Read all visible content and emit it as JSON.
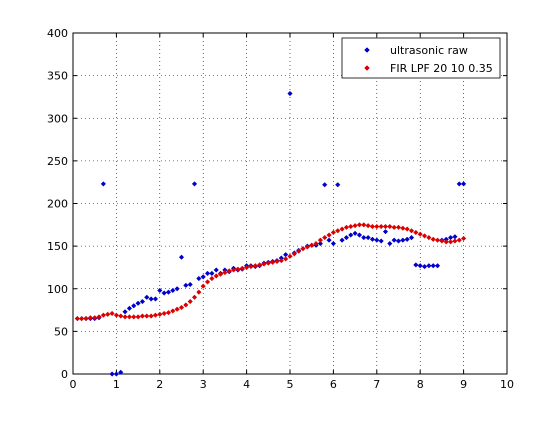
{
  "chart_data": {
    "type": "scatter",
    "title": "",
    "xlabel": "",
    "ylabel": "",
    "xlim": [
      0,
      10
    ],
    "ylim": [
      0,
      400
    ],
    "x_ticks": [
      0,
      1,
      2,
      3,
      4,
      5,
      6,
      7,
      8,
      9,
      10
    ],
    "y_ticks": [
      0,
      50,
      100,
      150,
      200,
      250,
      300,
      350,
      400
    ],
    "grid": true,
    "legend_position": "top-right",
    "series": [
      {
        "name": "ultrasonic raw",
        "color": "#0000cc",
        "marker": "diamond",
        "x": [
          0.1,
          0.2,
          0.3,
          0.4,
          0.5,
          0.6,
          0.7,
          0.9,
          1.0,
          1.1,
          1.2,
          1.3,
          1.4,
          1.5,
          1.6,
          1.7,
          1.8,
          1.9,
          2.0,
          2.1,
          2.2,
          2.3,
          2.4,
          2.5,
          2.6,
          2.7,
          2.8,
          2.9,
          3.0,
          3.1,
          3.2,
          3.3,
          3.4,
          3.5,
          3.6,
          3.7,
          3.8,
          3.9,
          4.0,
          4.1,
          4.2,
          4.3,
          4.4,
          4.5,
          4.6,
          4.7,
          4.8,
          4.9,
          5.0,
          5.1,
          5.2,
          5.3,
          5.4,
          5.5,
          5.6,
          5.7,
          5.8,
          5.9,
          6.0,
          6.1,
          6.2,
          6.3,
          6.4,
          6.5,
          6.6,
          6.7,
          6.8,
          6.9,
          7.0,
          7.1,
          7.2,
          7.3,
          7.4,
          7.5,
          7.6,
          7.7,
          7.8,
          7.9,
          8.0,
          8.1,
          8.2,
          8.3,
          8.4,
          8.5,
          8.6,
          8.7,
          8.8,
          8.9,
          9.0
        ],
        "y": [
          65,
          65,
          65,
          65,
          65,
          66,
          223,
          0,
          0,
          2,
          73,
          77,
          80,
          83,
          85,
          90,
          88,
          88,
          98,
          95,
          96,
          98,
          100,
          137,
          104,
          105,
          223,
          112,
          114,
          118,
          118,
          122,
          118,
          122,
          120,
          124,
          122,
          123,
          127,
          127,
          126,
          127,
          130,
          131,
          132,
          133,
          136,
          140,
          329,
          142,
          145,
          147,
          150,
          151,
          151,
          153,
          222,
          157,
          153,
          222,
          157,
          160,
          163,
          165,
          163,
          160,
          160,
          158,
          157,
          156,
          167,
          153,
          157,
          156,
          157,
          158,
          160,
          128,
          127,
          126,
          127,
          127,
          127,
          157,
          158,
          160,
          161,
          223,
          223
        ]
      },
      {
        "name": "FIR LPF 20 10 0.35",
        "color": "#dd0000",
        "marker": "diamond",
        "x": [
          0.1,
          0.2,
          0.3,
          0.4,
          0.5,
          0.6,
          0.7,
          0.8,
          0.9,
          1.0,
          1.1,
          1.2,
          1.3,
          1.4,
          1.5,
          1.6,
          1.7,
          1.8,
          1.9,
          2.0,
          2.1,
          2.2,
          2.3,
          2.4,
          2.5,
          2.6,
          2.7,
          2.8,
          2.9,
          3.0,
          3.1,
          3.2,
          3.3,
          3.4,
          3.5,
          3.6,
          3.7,
          3.8,
          3.9,
          4.0,
          4.1,
          4.2,
          4.3,
          4.4,
          4.5,
          4.6,
          4.7,
          4.8,
          4.9,
          5.0,
          5.1,
          5.2,
          5.3,
          5.4,
          5.5,
          5.6,
          5.7,
          5.8,
          5.9,
          6.0,
          6.1,
          6.2,
          6.3,
          6.4,
          6.5,
          6.6,
          6.7,
          6.8,
          6.9,
          7.0,
          7.1,
          7.2,
          7.3,
          7.4,
          7.5,
          7.6,
          7.7,
          7.8,
          7.9,
          8.0,
          8.1,
          8.2,
          8.3,
          8.4,
          8.5,
          8.6,
          8.7,
          8.8,
          8.9,
          9.0
        ],
        "y": [
          65,
          65,
          65,
          66,
          66,
          67,
          69,
          70,
          71,
          69,
          68,
          67,
          67,
          67,
          67,
          68,
          68,
          68,
          69,
          70,
          71,
          72,
          74,
          76,
          78,
          81,
          85,
          90,
          96,
          103,
          108,
          112,
          115,
          117,
          119,
          121,
          122,
          123,
          124,
          125,
          126,
          127,
          128,
          129,
          130,
          131,
          132,
          133,
          135,
          138,
          141,
          144,
          147,
          149,
          151,
          153,
          157,
          160,
          163,
          166,
          168,
          170,
          172,
          173,
          174,
          175,
          175,
          174,
          173,
          173,
          173,
          173,
          173,
          172,
          172,
          171,
          170,
          168,
          166,
          164,
          162,
          160,
          158,
          157,
          156,
          155,
          155,
          156,
          157,
          159
        ]
      }
    ]
  }
}
